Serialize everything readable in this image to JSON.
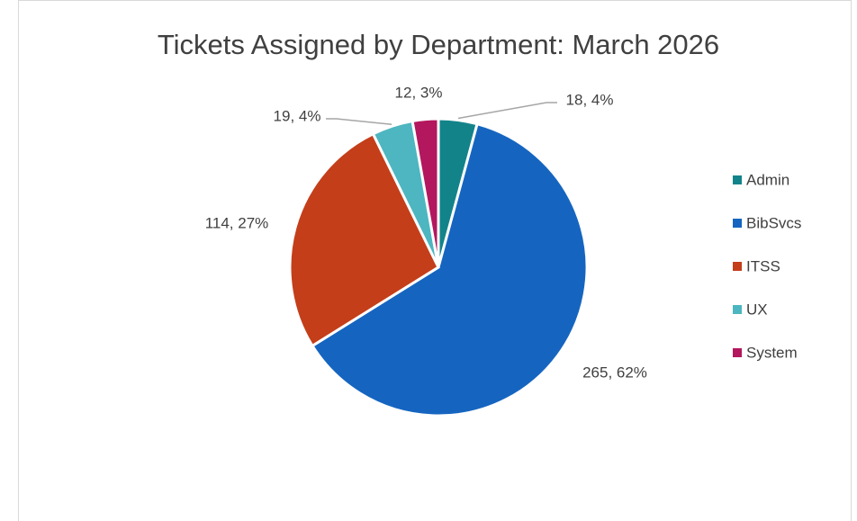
{
  "chart_data": {
    "type": "pie",
    "title": "Tickets Assigned by Department: March 2026",
    "categories": [
      "Admin",
      "BibSvcs",
      "ITSS",
      "UX",
      "System"
    ],
    "values": [
      18,
      265,
      114,
      19,
      12
    ],
    "value_labels": [
      "18, 4%",
      "265, 62%",
      "114, 27%",
      "19, 4%",
      "12, 3%"
    ],
    "colors": [
      "#13838a",
      "#1565c0",
      "#c43e1a",
      "#4db6c0",
      "#b3175e"
    ],
    "legend": "right"
  }
}
